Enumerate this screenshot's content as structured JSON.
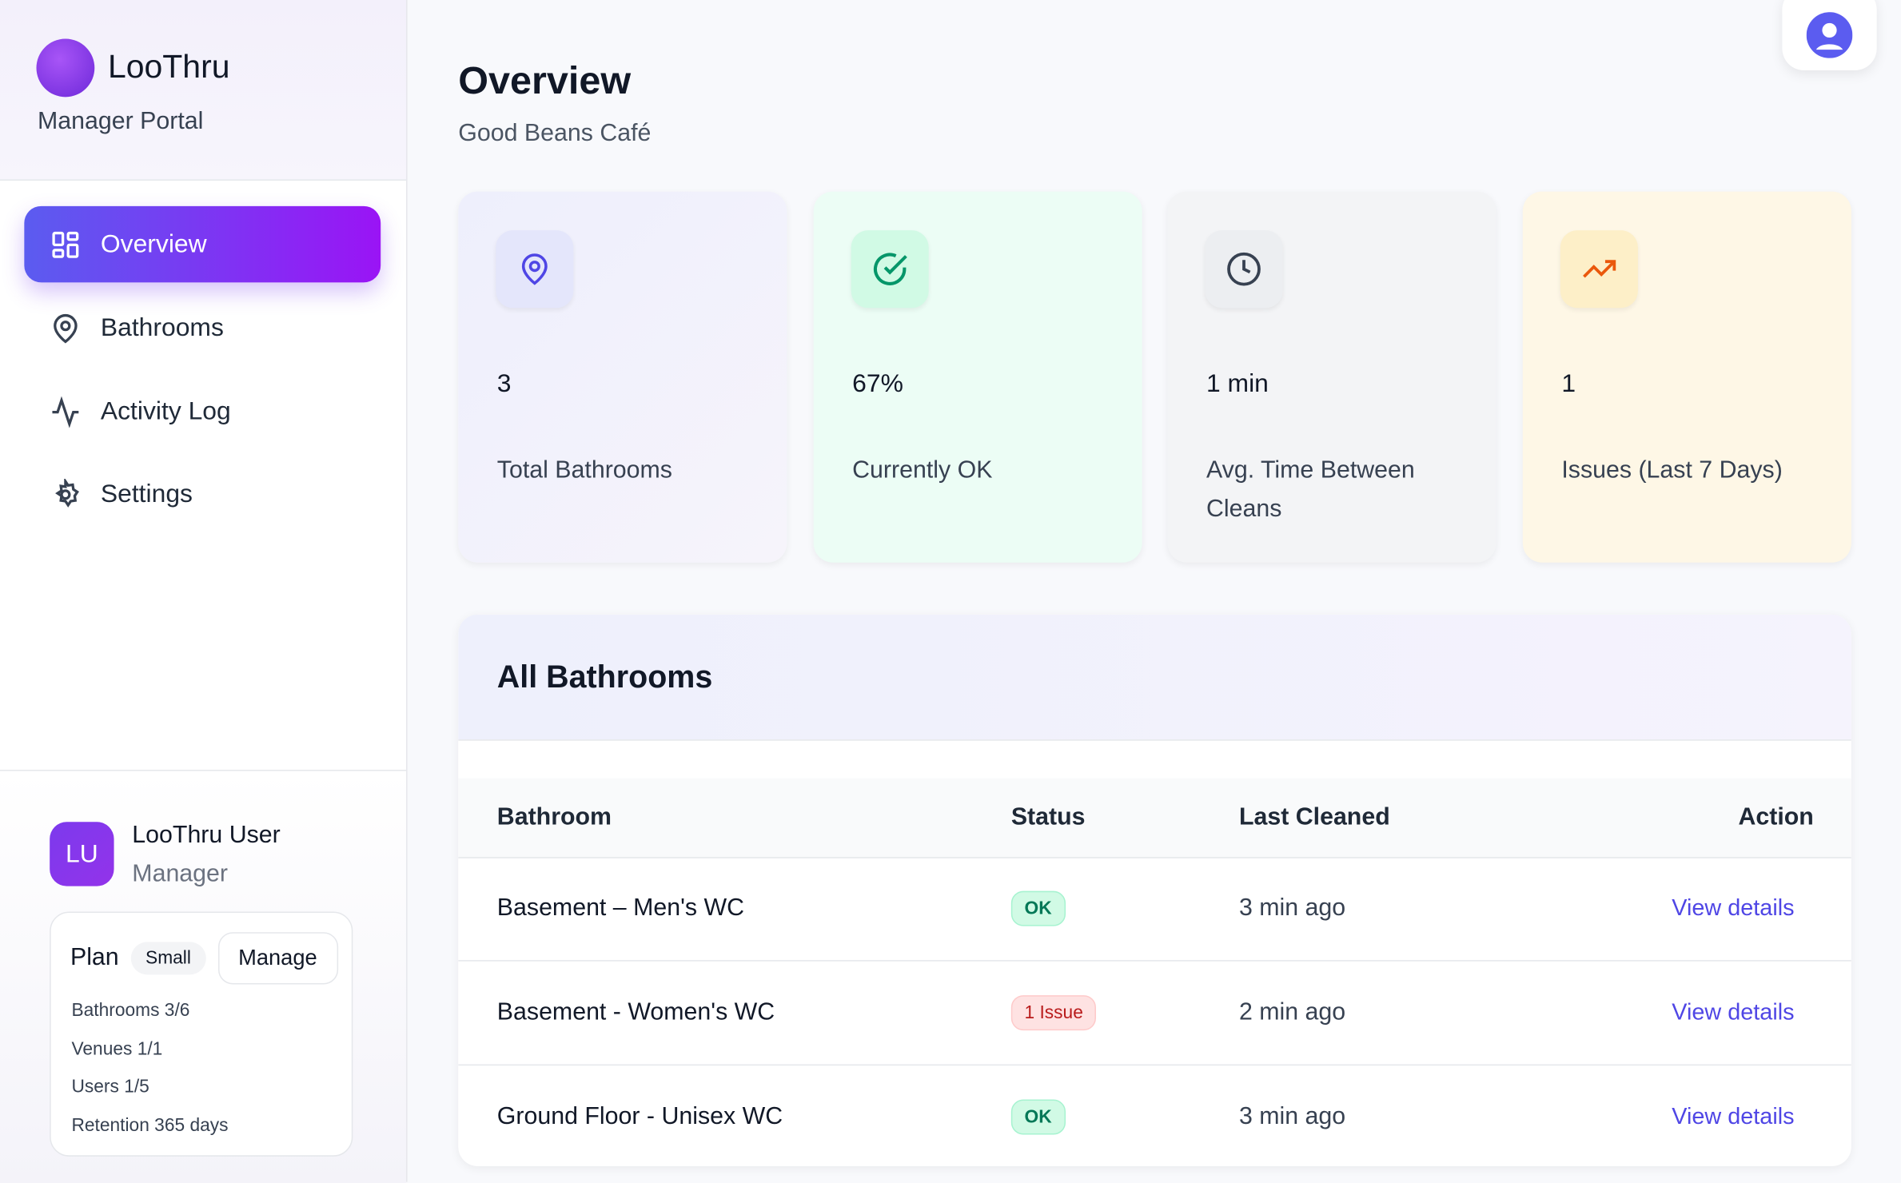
{
  "sidebar": {
    "brand": "LooThru",
    "subtitle": "Manager Portal",
    "nav": [
      "Overview",
      "Bathrooms",
      "Activity Log",
      "Settings"
    ],
    "user": {
      "initials": "LU",
      "name": "LooThru User",
      "role": "Manager"
    },
    "plan": {
      "label": "Plan",
      "tier": "Small",
      "manage": "Manage",
      "limits": [
        "Bathrooms 3/6",
        "Venues 1/1",
        "Users 1/5",
        "Retention 365 days"
      ]
    }
  },
  "header": {
    "title": "Overview",
    "venue": "Good Beans Café"
  },
  "stats": [
    {
      "value": "3",
      "label": "Total Bathrooms"
    },
    {
      "value": "67%",
      "label": "Currently OK"
    },
    {
      "value": "1 min",
      "label": "Avg. Time Between Cleans"
    },
    {
      "value": "1",
      "label": "Issues (Last 7 Days)"
    }
  ],
  "table": {
    "title": "All Bathrooms",
    "columns": [
      "Bathroom",
      "Status",
      "Last Cleaned",
      "Action"
    ],
    "rows": [
      [
        "Basement – Men's WC",
        "OK",
        "3 min ago",
        "View details"
      ],
      [
        "Basement - Women's WC",
        "1 Issue",
        "2 min ago",
        "View details"
      ],
      [
        "Ground Floor - Unisex WC",
        "OK",
        "3 min ago",
        "View details"
      ]
    ]
  }
}
